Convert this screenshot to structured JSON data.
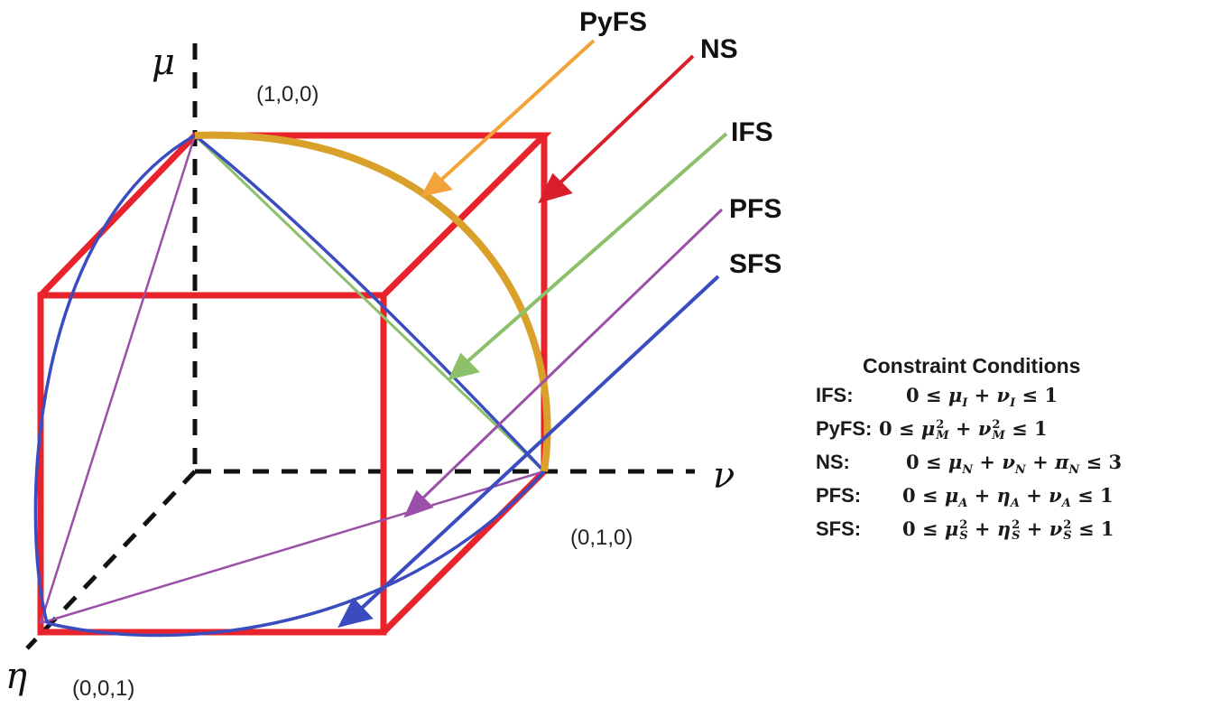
{
  "axes": {
    "mu": "μ",
    "nu": "ν",
    "eta": "η"
  },
  "coords": {
    "p100": "(1,0,0)",
    "p010": "(0,1,0)",
    "p001": "(0,0,1)"
  },
  "sets": {
    "pyfs": {
      "label": "PyFS",
      "color": "#f2a33a"
    },
    "ns": {
      "label": "NS",
      "color": "#d81f2b"
    },
    "ifs": {
      "label": "IFS",
      "color": "#8cc06a"
    },
    "pfs": {
      "label": "PFS",
      "color": "#9b4fa8"
    },
    "sfs": {
      "label": "SFS",
      "color": "#3a4cc0"
    }
  },
  "colors": {
    "cube": "#e8232b",
    "pyfs_arc": "#d9a02a",
    "axis": "#111111"
  },
  "constraints": {
    "title": "Constraint Conditions",
    "rows": [
      {
        "label": "IFS:"
      },
      {
        "label": "PyFS:"
      },
      {
        "label": "NS:"
      },
      {
        "label": "PFS:"
      },
      {
        "label": "SFS:"
      }
    ]
  }
}
